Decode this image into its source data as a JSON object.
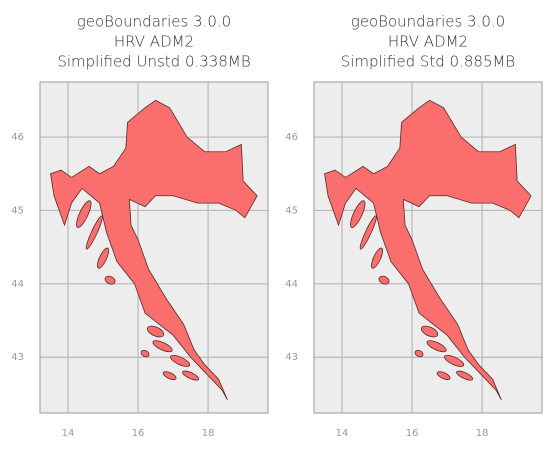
{
  "chart_data": [
    {
      "type": "map",
      "title": [
        "geoBoundaries 3.0.0",
        "HRV ADM2",
        "Simplified Unstd 0.338MB"
      ],
      "xlim": [
        13.2,
        19.71
      ],
      "ylim": [
        42.24,
        46.75
      ],
      "xticks": [
        14,
        16,
        18
      ],
      "yticks": [
        43,
        44,
        45,
        46
      ],
      "grid": true,
      "color": "#fa6e6e"
    },
    {
      "type": "map",
      "title": [
        "geoBoundaries 3.0.0",
        "HRV ADM2",
        "Simplified Std 0.885MB"
      ],
      "xlim": [
        13.2,
        19.71
      ],
      "ylim": [
        42.24,
        46.75
      ],
      "xticks": [
        14,
        16,
        18
      ],
      "yticks": [
        43,
        44,
        45,
        46
      ],
      "grid": true,
      "color": "#fa6e6e"
    }
  ]
}
